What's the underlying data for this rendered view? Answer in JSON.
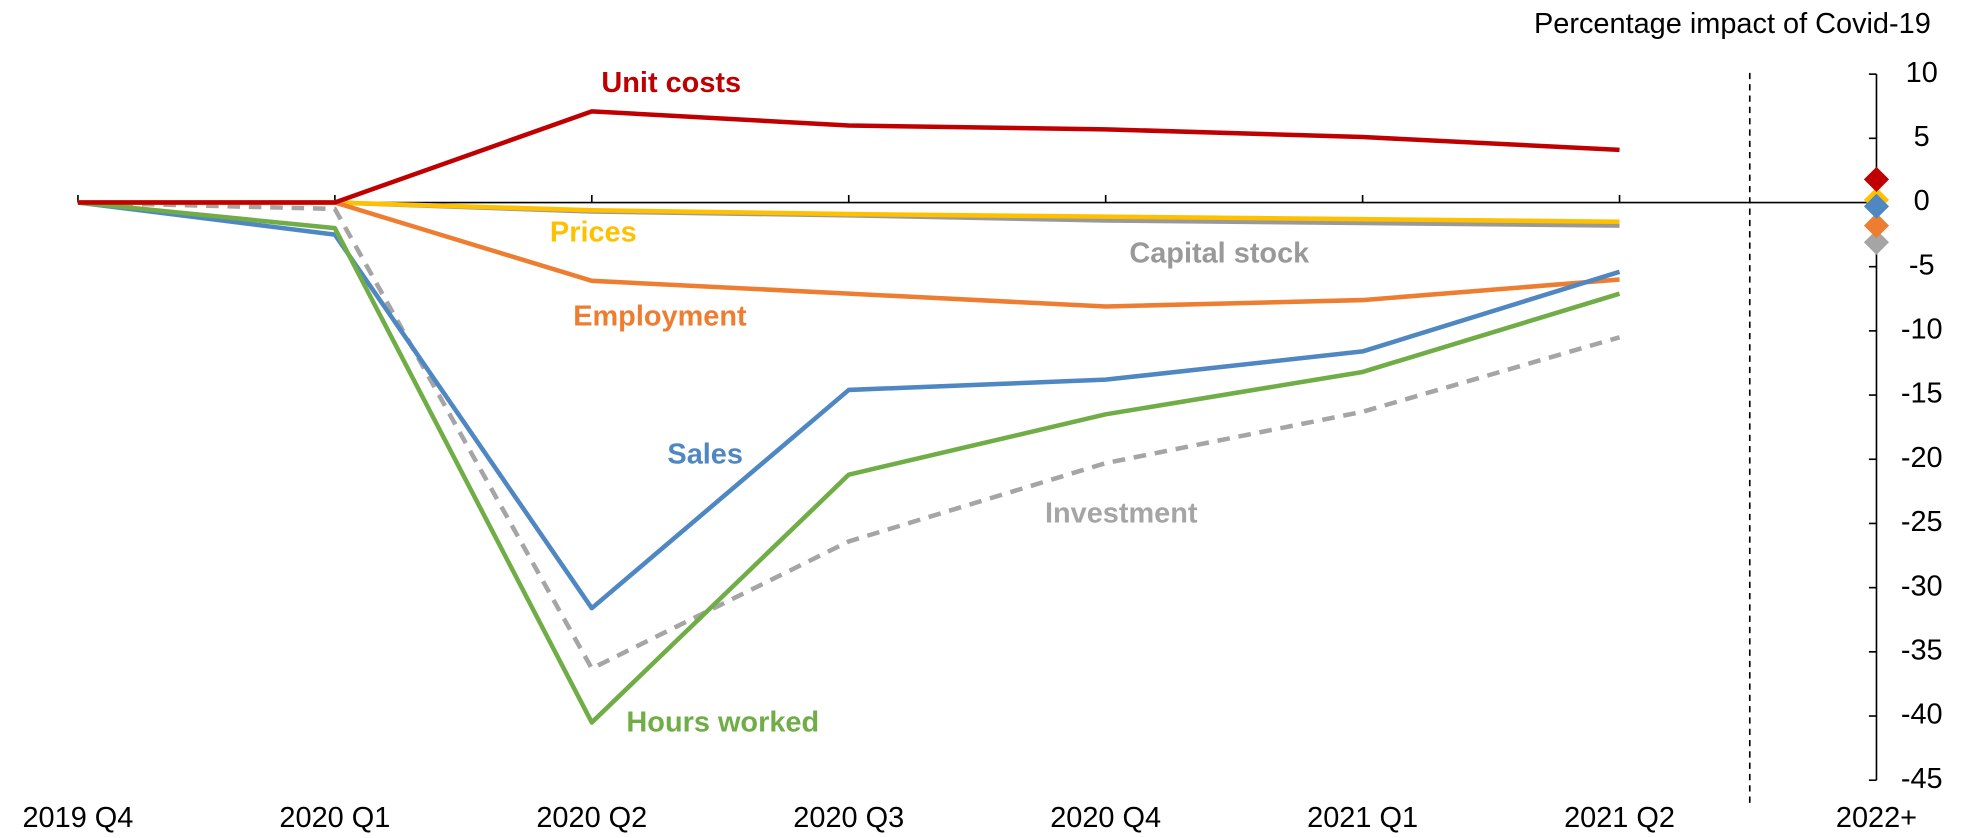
{
  "chart_data": {
    "type": "line",
    "y_axis_title": "Percentage impact of Covid-19",
    "categories": [
      "2019 Q4",
      "2020 Q1",
      "2020 Q2",
      "2020 Q3",
      "2020 Q4",
      "2021 Q1",
      "2021 Q2",
      "2022+"
    ],
    "ylim": [
      -45,
      10
    ],
    "yticks": [
      -45,
      -40,
      -35,
      -30,
      -25,
      -20,
      -15,
      -10,
      -5,
      0,
      5,
      10
    ],
    "series": [
      {
        "name": "Unit costs",
        "color": "#C00000",
        "values": [
          0,
          0,
          7.1,
          6.0,
          5.7,
          5.1,
          4.1,
          1.8
        ]
      },
      {
        "name": "Prices",
        "color": "#FFC000",
        "values": [
          0,
          0,
          -0.6,
          -0.9,
          -1.1,
          -1.3,
          -1.5,
          0.2
        ]
      },
      {
        "name": "Capital stock",
        "color": "#999999",
        "values": [
          0,
          0,
          -0.7,
          -1.0,
          -1.4,
          -1.6,
          -1.8,
          null
        ]
      },
      {
        "name": "Employment",
        "color": "#ED7D31",
        "values": [
          0,
          0,
          -6.1,
          -7.1,
          -8.1,
          -7.6,
          -6.0,
          -1.8
        ]
      },
      {
        "name": "Sales",
        "color": "#4E87C2",
        "values": [
          0,
          -2.5,
          -31.6,
          -14.6,
          -13.8,
          -11.6,
          -5.4,
          -0.3
        ]
      },
      {
        "name": "Hours worked",
        "color": "#70AD47",
        "values": [
          0,
          -2.0,
          -40.5,
          -21.2,
          -16.5,
          -13.2,
          -7.1,
          null
        ]
      },
      {
        "name": "Investment",
        "color": "#A5A5A5",
        "dashed": true,
        "values": [
          0,
          -0.5,
          -36.3,
          -26.4,
          -20.3,
          -16.3,
          -10.5,
          -3.1
        ]
      }
    ]
  }
}
